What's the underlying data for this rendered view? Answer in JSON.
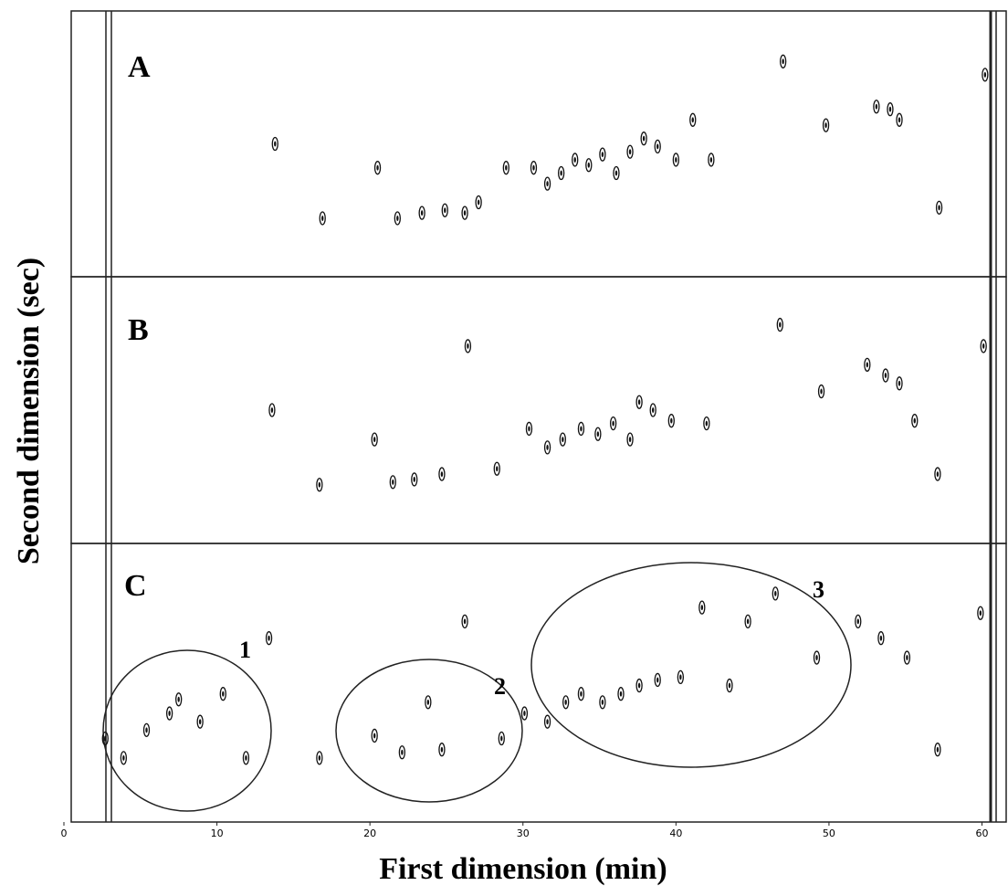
{
  "chart_data": [
    {
      "type": "scatter",
      "label": "A",
      "xlim": [
        0,
        61.7
      ],
      "ylim": [
        0,
        1
      ],
      "x": [
        13.8,
        16.9,
        20.5,
        21.8,
        23.4,
        24.9,
        26.2,
        27.1,
        28.9,
        30.7,
        31.6,
        32.5,
        33.4,
        34.3,
        35.2,
        36.1,
        37.0,
        37.9,
        38.8,
        40.0,
        41.1,
        42.3,
        47.0,
        49.8,
        57.2,
        60.2,
        53.1,
        54.0,
        54.6
      ],
      "y": [
        0.5,
        0.22,
        0.41,
        0.22,
        0.24,
        0.25,
        0.24,
        0.28,
        0.41,
        0.41,
        0.35,
        0.39,
        0.44,
        0.42,
        0.46,
        0.39,
        0.47,
        0.52,
        0.49,
        0.44,
        0.59,
        0.44,
        0.81,
        0.57,
        0.26,
        0.76,
        0.64,
        0.63,
        0.59
      ]
    },
    {
      "type": "scatter",
      "label": "B",
      "xlim": [
        0,
        61.7
      ],
      "ylim": [
        0,
        1
      ],
      "x": [
        13.6,
        16.7,
        20.3,
        21.5,
        22.9,
        24.7,
        26.4,
        28.3,
        30.4,
        31.6,
        32.6,
        33.8,
        34.9,
        35.9,
        37.0,
        37.6,
        38.5,
        39.7,
        42.0,
        46.8,
        49.5,
        55.6,
        57.1,
        60.1,
        52.5,
        53.7,
        54.6
      ],
      "y": [
        0.5,
        0.22,
        0.39,
        0.23,
        0.24,
        0.26,
        0.74,
        0.28,
        0.43,
        0.36,
        0.39,
        0.43,
        0.41,
        0.45,
        0.39,
        0.53,
        0.5,
        0.46,
        0.45,
        0.82,
        0.57,
        0.46,
        0.26,
        0.74,
        0.67,
        0.63,
        0.6
      ]
    },
    {
      "type": "scatter",
      "label": "C",
      "xlim": [
        0,
        61.7
      ],
      "ylim": [
        0,
        1
      ],
      "xticks": [
        0,
        10,
        20,
        30,
        40,
        50,
        60
      ],
      "xlabel": "First dimension (min)",
      "ylabel": "Second dimension (sec)",
      "regions": [
        "1",
        "2",
        "3"
      ],
      "x": [
        2.7,
        3.9,
        5.4,
        6.9,
        7.5,
        8.9,
        10.4,
        11.9,
        13.4,
        16.7,
        20.3,
        22.1,
        23.8,
        24.7,
        26.2,
        28.6,
        30.1,
        31.6,
        32.8,
        33.8,
        35.2,
        36.4,
        37.6,
        38.8,
        40.3,
        41.7,
        43.5,
        44.7,
        46.5,
        49.2,
        51.9,
        53.4,
        55.1,
        57.1,
        59.9
      ],
      "y": [
        0.3,
        0.23,
        0.33,
        0.39,
        0.44,
        0.36,
        0.46,
        0.23,
        0.66,
        0.23,
        0.31,
        0.25,
        0.43,
        0.26,
        0.72,
        0.3,
        0.39,
        0.36,
        0.43,
        0.46,
        0.43,
        0.46,
        0.49,
        0.51,
        0.52,
        0.77,
        0.49,
        0.72,
        0.82,
        0.59,
        0.72,
        0.66,
        0.59,
        0.26,
        0.75
      ]
    }
  ]
}
